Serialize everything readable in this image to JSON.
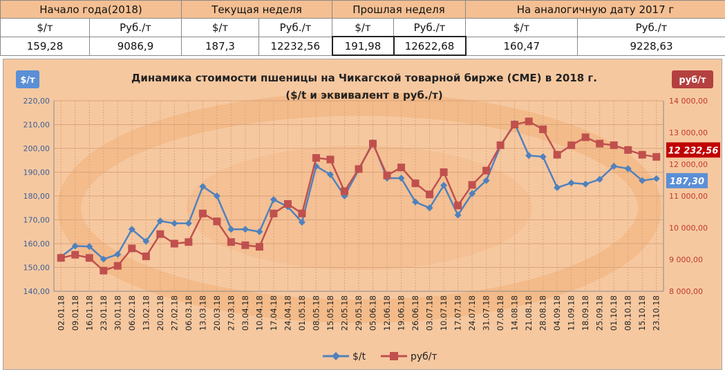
{
  "summary": {
    "groups": [
      "Начало года(2018)",
      "Текущая неделя",
      "Прошлая неделя",
      "На аналогичную дату 2017 г"
    ],
    "units": [
      "$/т",
      "Руб./т",
      "$/т",
      "Руб./т",
      "$/т",
      "Руб./т",
      "$/т",
      "Руб./т"
    ],
    "values": [
      "159,28",
      "9086,9",
      "187,3",
      "12232,56",
      "191,98",
      "12622,68",
      "160,47",
      "9228,63"
    ]
  },
  "chart_data": {
    "type": "line",
    "title": "Динамика стоимости пшеницы на Чикагской товарной бирже (CME) в 2018 г.",
    "subtitle": "($/t и эквивалент в руб./т)",
    "left_axis_badge": "$/т",
    "right_axis_badge": "руб/т",
    "categories": [
      "02.01.18",
      "09.01.18",
      "16.01.18",
      "23.01.18",
      "30.01.18",
      "06.02.18",
      "13.02.18",
      "20.02.18",
      "27.02.18",
      "06.03.18",
      "13.03.18",
      "20.03.18",
      "27.03.18",
      "03.04.18",
      "10.04.18",
      "17.04.18",
      "24.04.18",
      "01.05.18",
      "08.05.18",
      "15.05.18",
      "22.05.18",
      "29.05.18",
      "05.06.18",
      "12.06.18",
      "19.06.18",
      "26.06.18",
      "03.07.18",
      "10.07.18",
      "17.07.18",
      "24.07.18",
      "31.07.18",
      "07.08.18",
      "14.08.18",
      "21.08.18",
      "28.08.18",
      "04.09.18",
      "11.09.18",
      "18.09.18",
      "25.09.18",
      "01.10.18",
      "08.10.18",
      "15.10.18",
      "23.10.18"
    ],
    "ylim_left": [
      140,
      220
    ],
    "ylim_right": [
      8000,
      14000
    ],
    "left_ticks": [
      "140,00",
      "150,00",
      "160,00",
      "170,00",
      "180,00",
      "190,00",
      "200,00",
      "210,00",
      "220,00"
    ],
    "right_ticks": [
      "8 000,00",
      "9 000,00",
      "10 000,00",
      "11 000,00",
      "12 000,00",
      "13 000,00",
      "14 000,00"
    ],
    "grid": true,
    "legend_position": "bottom",
    "series": [
      {
        "name": "$/t",
        "axis": "left",
        "color": "#4f81bd",
        "marker": "diamond",
        "values": [
          154.5,
          159,
          158.8,
          153.5,
          155.5,
          166,
          161,
          169.5,
          168.5,
          168.5,
          184,
          180,
          166,
          166,
          165,
          178.5,
          175.5,
          169,
          192.5,
          189,
          180,
          191,
          202.5,
          187.5,
          187.5,
          177.5,
          175,
          184.5,
          172,
          181,
          186.5,
          201,
          210.5,
          197,
          196.5,
          183.5,
          185.5,
          185,
          187,
          192.5,
          191.5,
          186.5,
          187.3
        ]
      },
      {
        "name": "руб/т",
        "axis": "right",
        "color": "#c0504d",
        "marker": "square",
        "values": [
          9050,
          9150,
          9050,
          8650,
          8800,
          9350,
          9100,
          9800,
          9500,
          9550,
          10450,
          10200,
          9550,
          9450,
          9400,
          10450,
          10750,
          10450,
          12200,
          12150,
          11150,
          11850,
          12650,
          11650,
          11900,
          11400,
          11050,
          11750,
          10700,
          11350,
          11800,
          12600,
          13250,
          13350,
          13100,
          12300,
          12600,
          12850,
          12650,
          12600,
          12450,
          12300,
          12232.56
        ]
      }
    ],
    "last_labels": [
      {
        "series": "$/t",
        "text": "187,30",
        "color": "#5b8fd6"
      },
      {
        "series": "руб/т",
        "text": "12 232,56",
        "color": "#c00000"
      }
    ]
  }
}
